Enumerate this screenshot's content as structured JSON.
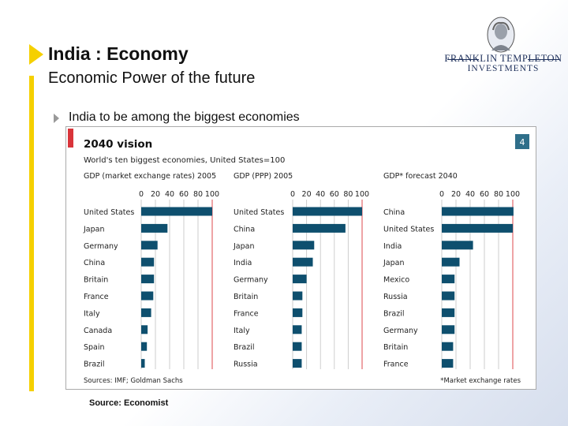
{
  "slide": {
    "title": "India : Economy",
    "subtitle": "Economic Power of the future",
    "bullet": "India to be among the biggest economies",
    "source": "Source: Economist"
  },
  "logo": {
    "line1": "FRANKLIN TEMPLETON",
    "line2": "INVESTMENTS"
  },
  "colors": {
    "accent": "#f5d000",
    "bar": "#0e4f6e",
    "red": "#d9343a",
    "badge": "#2f6f8a"
  },
  "chart_data": {
    "type": "bar",
    "title": "2040 vision",
    "subtitle": "World's ten biggest economies, United States=100",
    "badge": "4",
    "sources_note": "Sources: IMF; Goldman Sachs",
    "footnote": "*Market exchange rates",
    "xlim": [
      0,
      100
    ],
    "ticks": [
      "0",
      "20",
      "40",
      "60",
      "80",
      "100"
    ],
    "panels": [
      {
        "label": "GDP (market exchange rates) 2005",
        "categories": [
          "United States",
          "Japan",
          "Germany",
          "China",
          "Britain",
          "France",
          "Italy",
          "Canada",
          "Spain",
          "Brazil"
        ],
        "values": [
          100,
          37,
          23,
          18,
          18,
          17,
          14,
          9,
          8,
          5
        ]
      },
      {
        "label": "GDP (PPP) 2005",
        "categories": [
          "United States",
          "China",
          "Japan",
          "India",
          "Germany",
          "Britain",
          "France",
          "Italy",
          "Brazil",
          "Russia"
        ],
        "values": [
          100,
          76,
          31,
          29,
          20,
          14,
          14,
          13,
          13,
          13
        ]
      },
      {
        "label": "GDP* forecast 2040",
        "categories": [
          "China",
          "United States",
          "India",
          "Japan",
          "Mexico",
          "Russia",
          "Brazil",
          "Germany",
          "Britain",
          "France"
        ],
        "values": [
          101,
          100,
          44,
          25,
          18,
          18,
          18,
          18,
          16,
          16
        ]
      }
    ]
  }
}
